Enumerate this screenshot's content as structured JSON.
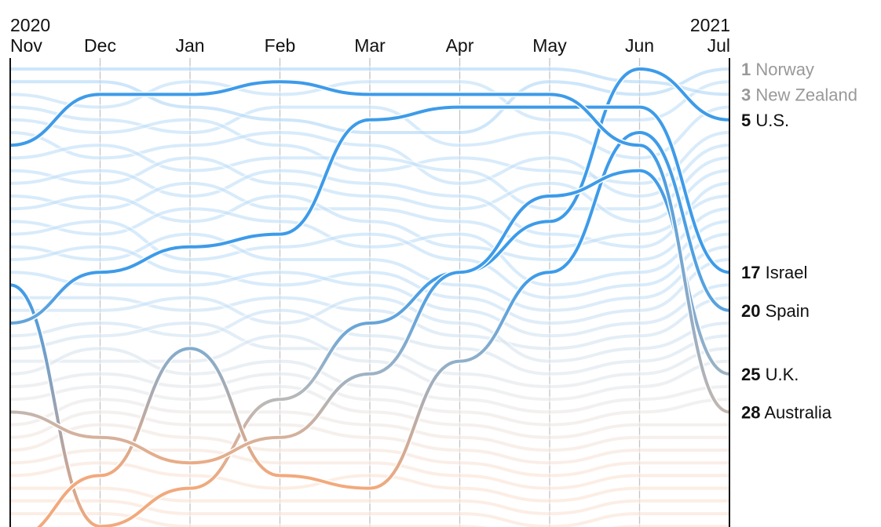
{
  "chart_data": {
    "type": "bump",
    "x_labels": [
      {
        "year": "2020",
        "month": "Nov"
      },
      {
        "year": "",
        "month": "Dec"
      },
      {
        "year": "",
        "month": "Jan"
      },
      {
        "year": "",
        "month": "Feb"
      },
      {
        "year": "",
        "month": "Mar"
      },
      {
        "year": "",
        "month": "Apr"
      },
      {
        "year": "",
        "month": "May"
      },
      {
        "year": "",
        "month": "Jun"
      },
      {
        "year": "2021",
        "month": "Jul"
      }
    ],
    "y_axis": "rank, 1 at top",
    "colors": {
      "top_rank": "#3d9be9",
      "middle_rank": "#b9b9b9",
      "bottom_rank": "#f2a97c",
      "muted_label": "#999999",
      "label": "#111111"
    },
    "highlighted_series": [
      {
        "name": "U.S.",
        "rank_label": "5",
        "ranks": [
          18,
          37,
          34,
          27,
          21,
          17,
          13,
          1,
          5
        ]
      },
      {
        "name": "Israel",
        "rank_label": "17",
        "ranks": [
          21,
          17,
          15,
          14,
          5,
          4,
          4,
          4,
          17
        ]
      },
      {
        "name": "Spain",
        "rank_label": "20",
        "ranks": [
          38,
          33,
          23,
          33,
          34,
          24,
          17,
          6,
          20
        ]
      },
      {
        "name": "U.K.",
        "rank_label": "25",
        "ranks": [
          28,
          30,
          32,
          30,
          25,
          17,
          11,
          9,
          25
        ]
      },
      {
        "name": "Australia",
        "rank_label": "28",
        "ranks": [
          7,
          3,
          3,
          2,
          3,
          3,
          3,
          7,
          28
        ]
      }
    ],
    "muted_series": [
      {
        "name": "Norway",
        "rank_label": "1",
        "ranks": [
          2,
          2,
          4,
          5,
          6,
          6,
          2,
          3,
          1
        ]
      },
      {
        "name": "New Zealand",
        "rank_label": "3",
        "ranks": [
          1,
          1,
          1,
          1,
          1,
          1,
          1,
          2,
          3
        ]
      }
    ],
    "other_series": [
      [
        3,
        4,
        2,
        3,
        2,
        2,
        5,
        5,
        2
      ],
      [
        4,
        5,
        6,
        4,
        4,
        7,
        6,
        8,
        4
      ],
      [
        5,
        6,
        5,
        7,
        9,
        8,
        9,
        10,
        6
      ],
      [
        6,
        8,
        7,
        6,
        7,
        10,
        8,
        11,
        7
      ],
      [
        8,
        7,
        9,
        8,
        8,
        9,
        12,
        12,
        8
      ],
      [
        9,
        10,
        8,
        10,
        11,
        12,
        10,
        13,
        9
      ],
      [
        10,
        9,
        11,
        9,
        10,
        11,
        14,
        15,
        10
      ],
      [
        11,
        12,
        10,
        12,
        12,
        13,
        15,
        14,
        11
      ],
      [
        12,
        11,
        13,
        11,
        13,
        15,
        16,
        16,
        12
      ],
      [
        13,
        14,
        12,
        13,
        15,
        14,
        18,
        17,
        13
      ],
      [
        14,
        13,
        16,
        15,
        14,
        16,
        19,
        18,
        14
      ],
      [
        15,
        16,
        14,
        16,
        16,
        18,
        20,
        19,
        15
      ],
      [
        16,
        15,
        17,
        18,
        17,
        19,
        21,
        20,
        16
      ],
      [
        17,
        18,
        18,
        17,
        18,
        20,
        22,
        21,
        18
      ],
      [
        19,
        19,
        20,
        19,
        20,
        22,
        23,
        22,
        19
      ],
      [
        20,
        20,
        19,
        21,
        19,
        21,
        24,
        23,
        21
      ],
      [
        22,
        21,
        22,
        20,
        22,
        23,
        25,
        24,
        22
      ],
      [
        23,
        22,
        21,
        23,
        23,
        25,
        26,
        25,
        23
      ],
      [
        24,
        24,
        24,
        22,
        24,
        26,
        27,
        26,
        24
      ],
      [
        25,
        23,
        25,
        24,
        26,
        27,
        28,
        27,
        26
      ],
      [
        26,
        25,
        26,
        25,
        27,
        28,
        29,
        28,
        27
      ],
      [
        27,
        26,
        27,
        26,
        28,
        29,
        30,
        29,
        29
      ],
      [
        29,
        27,
        28,
        28,
        29,
        30,
        31,
        30,
        30
      ],
      [
        30,
        28,
        29,
        29,
        30,
        31,
        32,
        31,
        31
      ],
      [
        31,
        29,
        30,
        31,
        31,
        32,
        33,
        32,
        32
      ],
      [
        32,
        31,
        31,
        32,
        32,
        33,
        34,
        33,
        33
      ],
      [
        33,
        32,
        33,
        34,
        33,
        34,
        35,
        34,
        34
      ],
      [
        34,
        34,
        35,
        35,
        35,
        35,
        36,
        35,
        35
      ],
      [
        35,
        35,
        36,
        36,
        36,
        36,
        37,
        36,
        36
      ],
      [
        36,
        36,
        37,
        37,
        37,
        37,
        38,
        37,
        37
      ]
    ]
  }
}
